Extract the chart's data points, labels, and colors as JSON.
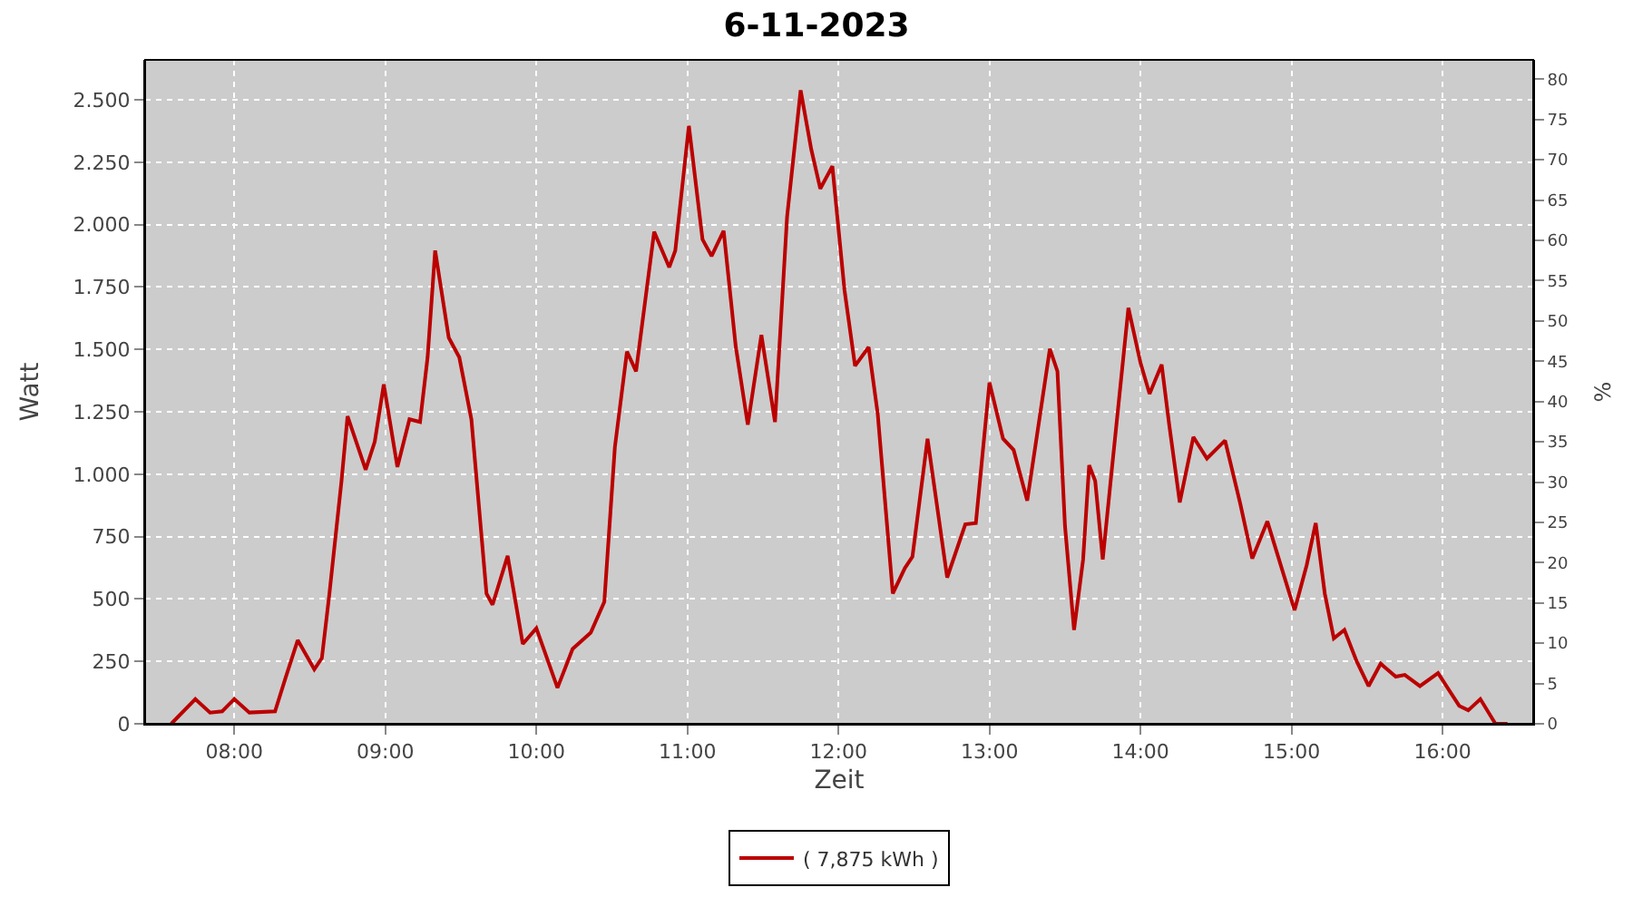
{
  "chart_data": {
    "type": "line",
    "title": "6-11-2023",
    "xlabel": "Zeit",
    "ylabel": "Watt",
    "y2label": "%",
    "xlim": [
      7.41,
      16.6
    ],
    "xticks": [
      {
        "value": 8,
        "label": "08:00"
      },
      {
        "value": 9,
        "label": "09:00"
      },
      {
        "value": 10,
        "label": "10:00"
      },
      {
        "value": 11,
        "label": "11:00"
      },
      {
        "value": 12,
        "label": "12:00"
      },
      {
        "value": 13,
        "label": "13:00"
      },
      {
        "value": 14,
        "label": "14:00"
      },
      {
        "value": 15,
        "label": "15:00"
      },
      {
        "value": 16,
        "label": "16:00"
      }
    ],
    "ylim": [
      0,
      2660
    ],
    "yticks": [
      {
        "value": 0,
        "label": "0"
      },
      {
        "value": 250,
        "label": "250"
      },
      {
        "value": 500,
        "label": "500"
      },
      {
        "value": 750,
        "label": "750"
      },
      {
        "value": 1000,
        "label": "1.000"
      },
      {
        "value": 1250,
        "label": "1.250"
      },
      {
        "value": 1500,
        "label": "1.500"
      },
      {
        "value": 1750,
        "label": "1.750"
      },
      {
        "value": 2000,
        "label": "2.000"
      },
      {
        "value": 2250,
        "label": "2.250"
      },
      {
        "value": 2500,
        "label": "2.500"
      }
    ],
    "y2lim": [
      0,
      82.4
    ],
    "y2ticks": [
      0,
      5,
      10,
      15,
      20,
      25,
      30,
      35,
      40,
      45,
      50,
      55,
      60,
      65,
      70,
      75,
      80
    ],
    "grid": true,
    "legend": "bottom",
    "marker": "none",
    "line_style": "solid",
    "series": [
      {
        "name": "( 7,875 kWh )",
        "color": "#bb0000",
        "x": [
          7.583,
          7.742,
          7.84,
          7.92,
          8.0,
          8.1,
          8.27,
          8.34,
          8.42,
          8.53,
          8.58,
          8.63,
          8.71,
          8.75,
          8.87,
          8.93,
          8.99,
          9.08,
          9.16,
          9.23,
          9.28,
          9.33,
          9.42,
          9.49,
          9.57,
          9.67,
          9.71,
          9.81,
          9.91,
          10.0,
          10.14,
          10.24,
          10.36,
          10.45,
          10.52,
          10.6,
          10.66,
          10.78,
          10.88,
          10.92,
          11.01,
          11.1,
          11.16,
          11.24,
          11.32,
          11.4,
          11.49,
          11.58,
          11.66,
          11.75,
          11.82,
          11.88,
          11.96,
          12.04,
          12.11,
          12.2,
          12.26,
          12.36,
          12.44,
          12.49,
          12.59,
          12.72,
          12.84,
          12.91,
          13.0,
          13.09,
          13.16,
          13.25,
          13.4,
          13.45,
          13.5,
          13.56,
          13.62,
          13.66,
          13.7,
          13.75,
          13.81,
          13.92,
          14.0,
          14.06,
          14.14,
          14.19,
          14.26,
          14.35,
          14.44,
          14.56,
          14.66,
          14.74,
          14.84,
          14.94,
          15.02,
          15.1,
          15.16,
          15.22,
          15.28,
          15.35,
          15.43,
          15.51,
          15.59,
          15.69,
          15.75,
          15.85,
          15.97,
          16.11,
          16.17,
          16.25,
          16.35,
          16.43
        ],
        "values": [
          0,
          99,
          45,
          50,
          99,
          45,
          50,
          185,
          335,
          218,
          263,
          522,
          973,
          1232,
          1018,
          1130,
          1360,
          1029,
          1220,
          1209,
          1468,
          1896,
          1547,
          1468,
          1220,
          522,
          477,
          673,
          320,
          383,
          144,
          300,
          365,
          489,
          1108,
          1491,
          1412,
          1971,
          1829,
          1896,
          2396,
          1941,
          1874,
          1975,
          1513,
          1198,
          1558,
          1209,
          2031,
          2538,
          2302,
          2144,
          2234,
          1739,
          1434,
          1509,
          1243,
          522,
          624,
          669,
          1142,
          586,
          799,
          804,
          1367,
          1142,
          1097,
          894,
          1502,
          1412,
          793,
          376,
          658,
          1036,
          973,
          658,
          1018,
          1666,
          1446,
          1322,
          1439,
          1198,
          887,
          1149,
          1063,
          1135,
          883,
          662,
          811,
          613,
          455,
          635,
          804,
          522,
          342,
          376,
          252,
          151,
          241,
          189,
          196,
          151,
          203,
          72,
          54,
          99,
          0,
          0
        ]
      }
    ]
  }
}
